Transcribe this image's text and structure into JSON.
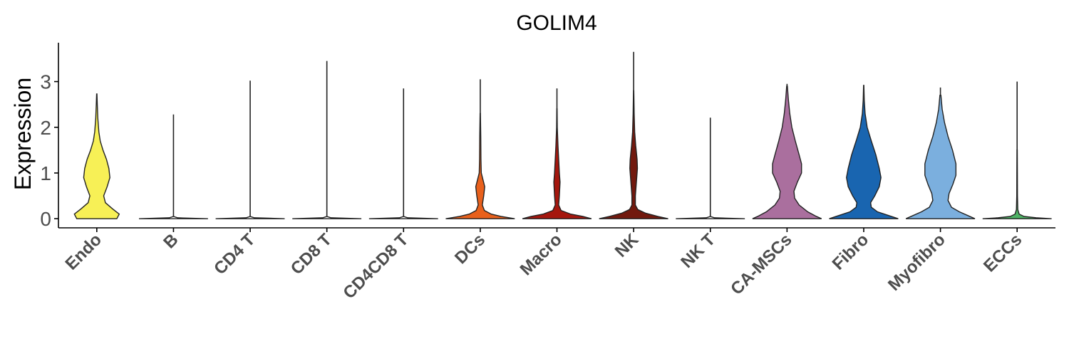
{
  "chart_data": {
    "type": "violin",
    "title": "GOLIM4",
    "xlabel": "",
    "ylabel": "Expression",
    "ylim": [
      -0.2,
      3.85
    ],
    "yticks": [
      0,
      1,
      2,
      3
    ],
    "grid": false,
    "legend": "none",
    "categories": [
      "Endo",
      "B",
      "CD4 T",
      "CD8 T",
      "CD4CD8 T",
      "DCs",
      "Macro",
      "NK",
      "NK T",
      "CA-MSCs",
      "Fibro",
      "Myofibro",
      "ECCs"
    ],
    "colors": [
      "#F7F056",
      "#F5F5F5",
      "#F5F5F5",
      "#F5F5F5",
      "#F5F5F5",
      "#E8601C",
      "#A5170E",
      "#72190E",
      "#F5F5F5",
      "#AA6F9E",
      "#1965B0",
      "#7BAFDE",
      "#4EB265"
    ],
    "series": [
      {
        "name": "Endo",
        "max": 2.73,
        "profile": [
          [
            0.0,
            0.58
          ],
          [
            0.1,
            0.65
          ],
          [
            0.22,
            0.45
          ],
          [
            0.35,
            0.25
          ],
          [
            0.5,
            0.2
          ],
          [
            0.7,
            0.3
          ],
          [
            0.9,
            0.38
          ],
          [
            1.1,
            0.35
          ],
          [
            1.3,
            0.28
          ],
          [
            1.5,
            0.18
          ],
          [
            1.7,
            0.1
          ],
          [
            1.9,
            0.06
          ],
          [
            2.2,
            0.03
          ],
          [
            2.5,
            0.015
          ],
          [
            2.73,
            0.005
          ]
        ]
      },
      {
        "name": "B",
        "max": 2.28,
        "profile": [
          [
            0.0,
            1.0
          ],
          [
            0.02,
            0.12
          ],
          [
            0.05,
            0.0
          ]
        ]
      },
      {
        "name": "CD4 T",
        "max": 3.02,
        "profile": [
          [
            0.0,
            1.0
          ],
          [
            0.02,
            0.12
          ],
          [
            0.05,
            0.0
          ]
        ]
      },
      {
        "name": "CD8 T",
        "max": 3.45,
        "profile": [
          [
            0.0,
            1.0
          ],
          [
            0.02,
            0.12
          ],
          [
            0.05,
            0.0
          ]
        ]
      },
      {
        "name": "CD4CD8 T",
        "max": 2.85,
        "profile": [
          [
            0.0,
            1.0
          ],
          [
            0.02,
            0.12
          ],
          [
            0.05,
            0.0
          ]
        ]
      },
      {
        "name": "DCs",
        "max": 3.05,
        "profile": [
          [
            0.0,
            1.0
          ],
          [
            0.05,
            0.6
          ],
          [
            0.1,
            0.32
          ],
          [
            0.18,
            0.12
          ],
          [
            0.3,
            0.06
          ],
          [
            0.5,
            0.1
          ],
          [
            0.7,
            0.13
          ],
          [
            0.85,
            0.08
          ],
          [
            1.0,
            0.03
          ],
          [
            1.3,
            0.02
          ],
          [
            1.8,
            0.015
          ],
          [
            2.3,
            0.005
          ]
        ]
      },
      {
        "name": "Macro",
        "max": 2.85,
        "profile": [
          [
            0.0,
            1.0
          ],
          [
            0.05,
            0.75
          ],
          [
            0.1,
            0.4
          ],
          [
            0.18,
            0.12
          ],
          [
            0.3,
            0.05
          ],
          [
            0.5,
            0.07
          ],
          [
            0.8,
            0.09
          ],
          [
            1.0,
            0.07
          ],
          [
            1.3,
            0.05
          ],
          [
            1.6,
            0.03
          ],
          [
            2.0,
            0.01
          ],
          [
            2.4,
            0.005
          ]
        ]
      },
      {
        "name": "NK",
        "max": 3.65,
        "profile": [
          [
            0.0,
            1.0
          ],
          [
            0.05,
            0.7
          ],
          [
            0.12,
            0.35
          ],
          [
            0.2,
            0.12
          ],
          [
            0.3,
            0.05
          ],
          [
            0.5,
            0.05
          ],
          [
            0.8,
            0.08
          ],
          [
            1.1,
            0.11
          ],
          [
            1.3,
            0.1
          ],
          [
            1.6,
            0.06
          ],
          [
            1.9,
            0.03
          ],
          [
            2.3,
            0.015
          ],
          [
            2.8,
            0.005
          ]
        ]
      },
      {
        "name": "NK T",
        "max": 2.21,
        "profile": [
          [
            0.0,
            1.0
          ],
          [
            0.02,
            0.12
          ],
          [
            0.05,
            0.0
          ]
        ]
      },
      {
        "name": "CA-MSCs",
        "max": 2.95,
        "profile": [
          [
            0.0,
            1.0
          ],
          [
            0.05,
            0.85
          ],
          [
            0.15,
            0.6
          ],
          [
            0.3,
            0.35
          ],
          [
            0.45,
            0.22
          ],
          [
            0.6,
            0.2
          ],
          [
            0.8,
            0.3
          ],
          [
            1.0,
            0.42
          ],
          [
            1.2,
            0.42
          ],
          [
            1.4,
            0.35
          ],
          [
            1.7,
            0.24
          ],
          [
            2.0,
            0.14
          ],
          [
            2.3,
            0.08
          ],
          [
            2.6,
            0.04
          ],
          [
            2.9,
            0.01
          ]
        ]
      },
      {
        "name": "Fibro",
        "max": 2.93,
        "profile": [
          [
            0.0,
            1.0
          ],
          [
            0.05,
            0.8
          ],
          [
            0.15,
            0.4
          ],
          [
            0.25,
            0.22
          ],
          [
            0.35,
            0.2
          ],
          [
            0.5,
            0.32
          ],
          [
            0.7,
            0.45
          ],
          [
            0.9,
            0.5
          ],
          [
            1.1,
            0.45
          ],
          [
            1.4,
            0.35
          ],
          [
            1.7,
            0.22
          ],
          [
            2.0,
            0.1
          ],
          [
            2.3,
            0.04
          ],
          [
            2.6,
            0.015
          ],
          [
            2.9,
            0.005
          ]
        ]
      },
      {
        "name": "Myofibro",
        "max": 2.87,
        "profile": [
          [
            0.0,
            1.0
          ],
          [
            0.05,
            0.85
          ],
          [
            0.15,
            0.55
          ],
          [
            0.25,
            0.32
          ],
          [
            0.4,
            0.22
          ],
          [
            0.55,
            0.25
          ],
          [
            0.75,
            0.36
          ],
          [
            0.95,
            0.45
          ],
          [
            1.2,
            0.45
          ],
          [
            1.5,
            0.35
          ],
          [
            1.8,
            0.22
          ],
          [
            2.1,
            0.12
          ],
          [
            2.4,
            0.05
          ],
          [
            2.7,
            0.015
          ]
        ]
      },
      {
        "name": "ECCs",
        "max": 3.0,
        "profile": [
          [
            0.0,
            1.0
          ],
          [
            0.02,
            0.55
          ],
          [
            0.05,
            0.2
          ],
          [
            0.1,
            0.06
          ],
          [
            0.2,
            0.02
          ],
          [
            0.5,
            0.01
          ],
          [
            1.0,
            0.008
          ],
          [
            1.5,
            0.005
          ]
        ]
      }
    ]
  }
}
